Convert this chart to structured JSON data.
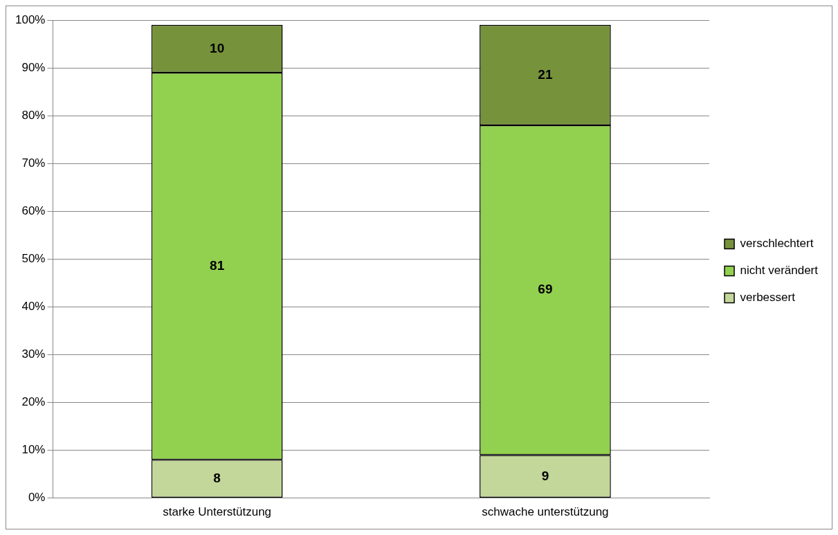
{
  "chart_data": {
    "type": "bar",
    "stacked": true,
    "categories": [
      "starke Unterstützung",
      "schwache unterstützung"
    ],
    "series": [
      {
        "name": "verbessert",
        "color": "#c4d79b",
        "values": [
          8,
          9
        ]
      },
      {
        "name": "nicht verändert",
        "color": "#92d050",
        "values": [
          81,
          69
        ]
      },
      {
        "name": "verschlechtert",
        "color": "#76933c",
        "values": [
          10,
          21
        ]
      }
    ],
    "data_labels": true,
    "legend": "right",
    "grid": "y",
    "ylim": [
      0,
      100
    ],
    "yticks": [
      {
        "value": 0,
        "label": "0%"
      },
      {
        "value": 10,
        "label": "10%"
      },
      {
        "value": 20,
        "label": "20%"
      },
      {
        "value": 30,
        "label": "30%"
      },
      {
        "value": 40,
        "label": "40%"
      },
      {
        "value": 50,
        "label": "50%"
      },
      {
        "value": 60,
        "label": "60%"
      },
      {
        "value": 70,
        "label": "70%"
      },
      {
        "value": 80,
        "label": "80%"
      },
      {
        "value": 90,
        "label": "90%"
      },
      {
        "value": 100,
        "label": "100%"
      }
    ]
  }
}
